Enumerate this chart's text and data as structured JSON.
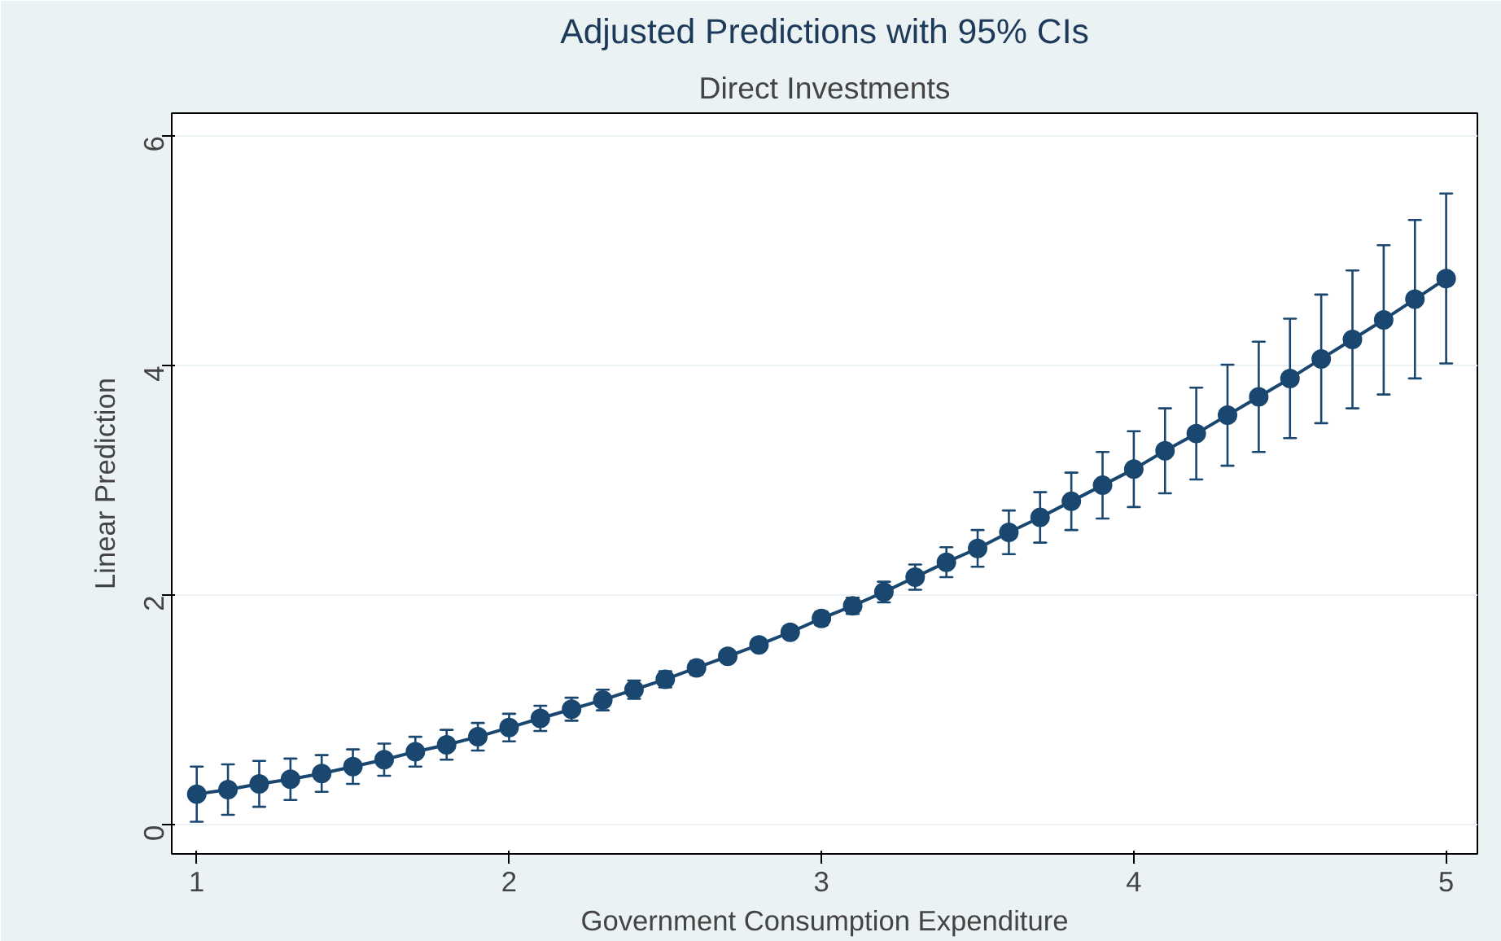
{
  "chart_data": {
    "type": "line",
    "title": "Adjusted Predictions with 95% CIs",
    "subtitle": "Direct Investments",
    "xlabel": "Government Consumption Expenditure",
    "ylabel": "Linear Prediction",
    "x": [
      1.0,
      1.1,
      1.2,
      1.3,
      1.4,
      1.5,
      1.6,
      1.7,
      1.8,
      1.9,
      2.0,
      2.1,
      2.2,
      2.3,
      2.4,
      2.5,
      2.6,
      2.7,
      2.8,
      2.9,
      3.0,
      3.1,
      3.2,
      3.3,
      3.4,
      3.5,
      3.6,
      3.7,
      3.8,
      3.9,
      4.0,
      4.1,
      4.2,
      4.3,
      4.4,
      4.5,
      4.6,
      4.7,
      4.8,
      4.9,
      5.0
    ],
    "values": [
      0.27,
      0.31,
      0.36,
      0.4,
      0.45,
      0.51,
      0.57,
      0.64,
      0.7,
      0.77,
      0.85,
      0.93,
      1.01,
      1.09,
      1.18,
      1.27,
      1.37,
      1.47,
      1.57,
      1.68,
      1.8,
      1.91,
      2.03,
      2.16,
      2.29,
      2.41,
      2.55,
      2.68,
      2.82,
      2.96,
      3.1,
      3.26,
      3.41,
      3.57,
      3.73,
      3.89,
      4.06,
      4.23,
      4.4,
      4.58,
      4.76
    ],
    "errors": [
      0.24,
      0.22,
      0.2,
      0.18,
      0.16,
      0.15,
      0.14,
      0.13,
      0.13,
      0.12,
      0.12,
      0.11,
      0.1,
      0.09,
      0.08,
      0.07,
      0.06,
      0.05,
      0.05,
      0.05,
      0.06,
      0.07,
      0.09,
      0.11,
      0.13,
      0.16,
      0.19,
      0.22,
      0.25,
      0.29,
      0.33,
      0.37,
      0.4,
      0.44,
      0.48,
      0.52,
      0.56,
      0.6,
      0.65,
      0.69,
      0.74
    ],
    "color": "#1a476f",
    "marker": "circle",
    "line_style": "solid",
    "grid": "y",
    "xlim": [
      0.92,
      5.1
    ],
    "ylim": [
      -0.25,
      6.2
    ],
    "xticks": [
      1,
      2,
      3,
      4,
      5
    ],
    "yticks": [
      0,
      2,
      4,
      6
    ]
  }
}
